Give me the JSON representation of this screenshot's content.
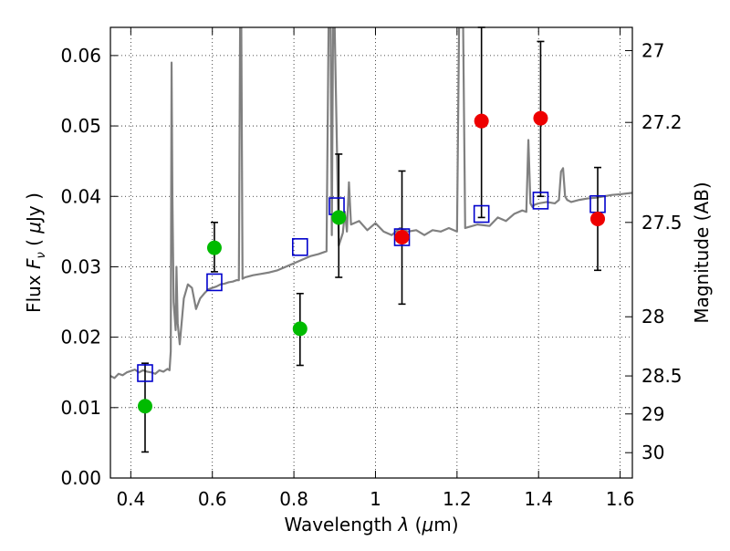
{
  "chart_data": {
    "type": "scatter",
    "xlabel": {
      "prefix": "Wavelength ",
      "lambda": "λ",
      "paren_open": " (",
      "mu": "μ",
      "unit": "m)"
    },
    "ylabel": {
      "prefix": "Flux ",
      "F": "F",
      "nu": "ν",
      "paren_open": " ( ",
      "mu": "μ",
      "unit": "Jy )"
    },
    "y2label": "Magnitude (AB)",
    "xlim": [
      0.35,
      1.63
    ],
    "ylim": [
      0.0,
      0.064
    ],
    "grid": true,
    "x_ticks": [
      {
        "value": 0.4,
        "label": "0.4"
      },
      {
        "value": 0.6,
        "label": "0.6"
      },
      {
        "value": 0.8,
        "label": "0.8"
      },
      {
        "value": 1.0,
        "label": "1"
      },
      {
        "value": 1.2,
        "label": "1.2"
      },
      {
        "value": 1.4,
        "label": "1.4"
      },
      {
        "value": 1.6,
        "label": "1.6"
      }
    ],
    "y_ticks": [
      {
        "value": 0.0,
        "label": "0.00"
      },
      {
        "value": 0.01,
        "label": "0.01"
      },
      {
        "value": 0.02,
        "label": "0.02"
      },
      {
        "value": 0.03,
        "label": "0.03"
      },
      {
        "value": 0.04,
        "label": "0.04"
      },
      {
        "value": 0.05,
        "label": "0.05"
      },
      {
        "value": 0.06,
        "label": "0.06"
      }
    ],
    "y2_ticks": [
      {
        "flux": 0.0607,
        "label": "27"
      },
      {
        "flux": 0.0505,
        "label": "27.2"
      },
      {
        "flux": 0.0363,
        "label": "27.5"
      },
      {
        "flux": 0.0229,
        "label": "28"
      },
      {
        "flux": 0.0145,
        "label": "28.5"
      },
      {
        "flux": 0.0091,
        "label": "29"
      },
      {
        "flux": 0.0036,
        "label": "30"
      }
    ],
    "colors": {
      "model": "#808080",
      "green": "#00bb00",
      "red": "#ee0000",
      "square": "#0000cc",
      "errorbar": "#000000"
    },
    "model_spectrum": {
      "x": [
        0.35,
        0.36,
        0.37,
        0.38,
        0.39,
        0.4,
        0.41,
        0.42,
        0.43,
        0.44,
        0.45,
        0.46,
        0.47,
        0.48,
        0.49,
        0.495,
        0.498,
        0.5,
        0.502,
        0.505,
        0.51,
        0.512,
        0.515,
        0.52,
        0.53,
        0.54,
        0.55,
        0.56,
        0.57,
        0.58,
        0.59,
        0.6,
        0.61,
        0.62,
        0.63,
        0.64,
        0.65,
        0.66,
        0.665,
        0.668,
        0.671,
        0.674,
        0.68,
        0.7,
        0.72,
        0.74,
        0.76,
        0.78,
        0.8,
        0.82,
        0.84,
        0.86,
        0.88,
        0.885,
        0.89,
        0.893,
        0.896,
        0.9,
        0.91,
        0.92,
        0.925,
        0.93,
        0.935,
        0.94,
        0.96,
        0.98,
        1.0,
        1.02,
        1.04,
        1.06,
        1.08,
        1.1,
        1.12,
        1.14,
        1.16,
        1.18,
        1.2,
        1.205,
        1.21,
        1.215,
        1.22,
        1.25,
        1.28,
        1.3,
        1.32,
        1.34,
        1.36,
        1.37,
        1.375,
        1.38,
        1.385,
        1.39,
        1.4,
        1.42,
        1.44,
        1.45,
        1.455,
        1.46,
        1.465,
        1.47,
        1.48,
        1.5,
        1.52,
        1.54,
        1.56,
        1.58,
        1.6,
        1.63
      ],
      "y": [
        0.0145,
        0.0142,
        0.0148,
        0.0146,
        0.015,
        0.0152,
        0.0154,
        0.015,
        0.0153,
        0.0151,
        0.015,
        0.0148,
        0.0153,
        0.0151,
        0.0155,
        0.0153,
        0.018,
        0.059,
        0.04,
        0.025,
        0.021,
        0.03,
        0.022,
        0.019,
        0.0255,
        0.0275,
        0.027,
        0.024,
        0.0255,
        0.0262,
        0.0268,
        0.027,
        0.0272,
        0.0275,
        0.0276,
        0.0278,
        0.0279,
        0.0281,
        0.0281,
        0.064,
        0.064,
        0.0283,
        0.0285,
        0.0288,
        0.029,
        0.0292,
        0.0295,
        0.03,
        0.0305,
        0.031,
        0.0315,
        0.0318,
        0.0322,
        0.064,
        0.064,
        0.0345,
        0.064,
        0.064,
        0.033,
        0.0348,
        0.0378,
        0.035,
        0.042,
        0.036,
        0.0365,
        0.0352,
        0.0362,
        0.035,
        0.0345,
        0.0355,
        0.035,
        0.0352,
        0.0345,
        0.0352,
        0.035,
        0.0355,
        0.035,
        0.064,
        0.064,
        0.064,
        0.0355,
        0.036,
        0.0358,
        0.037,
        0.0365,
        0.0375,
        0.038,
        0.0378,
        0.048,
        0.039,
        0.0385,
        0.0388,
        0.039,
        0.0392,
        0.039,
        0.0395,
        0.0435,
        0.044,
        0.04,
        0.0395,
        0.0392,
        0.0395,
        0.0397,
        0.0398,
        0.04,
        0.0402,
        0.0403,
        0.0405
      ]
    },
    "green_points": [
      {
        "x": 0.435,
        "y": 0.0102,
        "err_low": 0.0037,
        "err_high": 0.0163
      },
      {
        "x": 0.605,
        "y": 0.0327,
        "err_low": 0.0293,
        "err_high": 0.0363
      },
      {
        "x": 0.815,
        "y": 0.0212,
        "err_low": 0.016,
        "err_high": 0.0262
      },
      {
        "x": 0.91,
        "y": 0.037,
        "err_low": 0.0285,
        "err_high": 0.046
      }
    ],
    "red_points": [
      {
        "x": 1.065,
        "y": 0.0342,
        "err_low": 0.0247,
        "err_high": 0.0436
      },
      {
        "x": 1.26,
        "y": 0.0507,
        "err_low": 0.037,
        "err_high": 0.064
      },
      {
        "x": 1.405,
        "y": 0.0511,
        "err_low": 0.04,
        "err_high": 0.062
      },
      {
        "x": 1.545,
        "y": 0.0368,
        "err_low": 0.0295,
        "err_high": 0.0441
      }
    ],
    "model_squares": [
      {
        "x": 0.435,
        "y": 0.0149
      },
      {
        "x": 0.605,
        "y": 0.0278
      },
      {
        "x": 0.815,
        "y": 0.0328
      },
      {
        "x": 0.905,
        "y": 0.0386
      },
      {
        "x": 1.065,
        "y": 0.0342
      },
      {
        "x": 1.26,
        "y": 0.0375
      },
      {
        "x": 1.405,
        "y": 0.0394
      },
      {
        "x": 1.545,
        "y": 0.0389
      }
    ]
  }
}
